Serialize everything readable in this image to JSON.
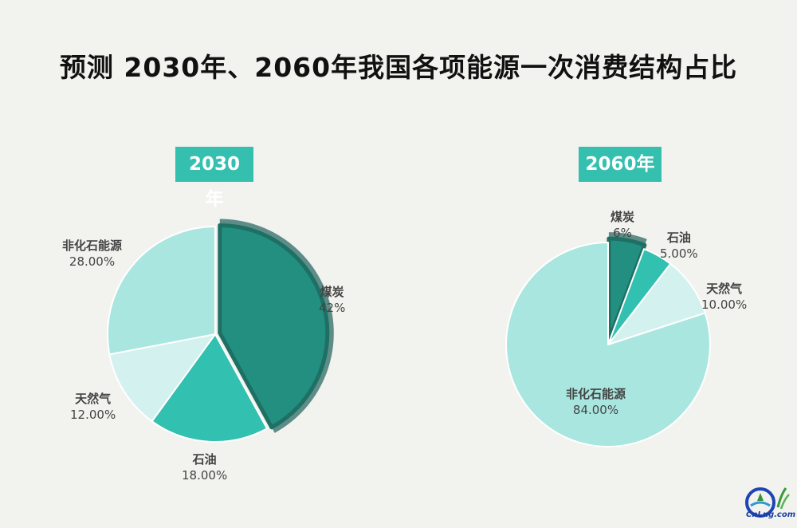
{
  "title": "预测 2030年、2060年我国各项能源一次消费结构占比",
  "chart_data": [
    {
      "type": "pie",
      "title": "2030年",
      "slices": [
        {
          "name": "煤炭",
          "label": "42%",
          "value": 42,
          "color": "#238f80",
          "highlighted": true
        },
        {
          "name": "石油",
          "label": "18.00%",
          "value": 18,
          "color": "#32c0b0"
        },
        {
          "name": "天然气",
          "label": "12.00%",
          "value": 12,
          "color": "#d3f1ee"
        },
        {
          "name": "非化石能源",
          "label": "28.00%",
          "value": 28,
          "color": "#a9e6e0"
        }
      ]
    },
    {
      "type": "pie",
      "title": "2060年",
      "slices": [
        {
          "name": "煤炭",
          "label": "6%",
          "value": 6,
          "color": "#238f80",
          "highlighted": true
        },
        {
          "name": "石油",
          "label": "5.00%",
          "value": 5,
          "color": "#32c0b0"
        },
        {
          "name": "天然气",
          "label": "10.00%",
          "value": 10,
          "color": "#d3f1ee"
        },
        {
          "name": "非化石能源",
          "label": "84.00%",
          "value": 84,
          "color": "#a9e6e0"
        }
      ]
    }
  ],
  "logo": {
    "text": "CnLng.com"
  }
}
